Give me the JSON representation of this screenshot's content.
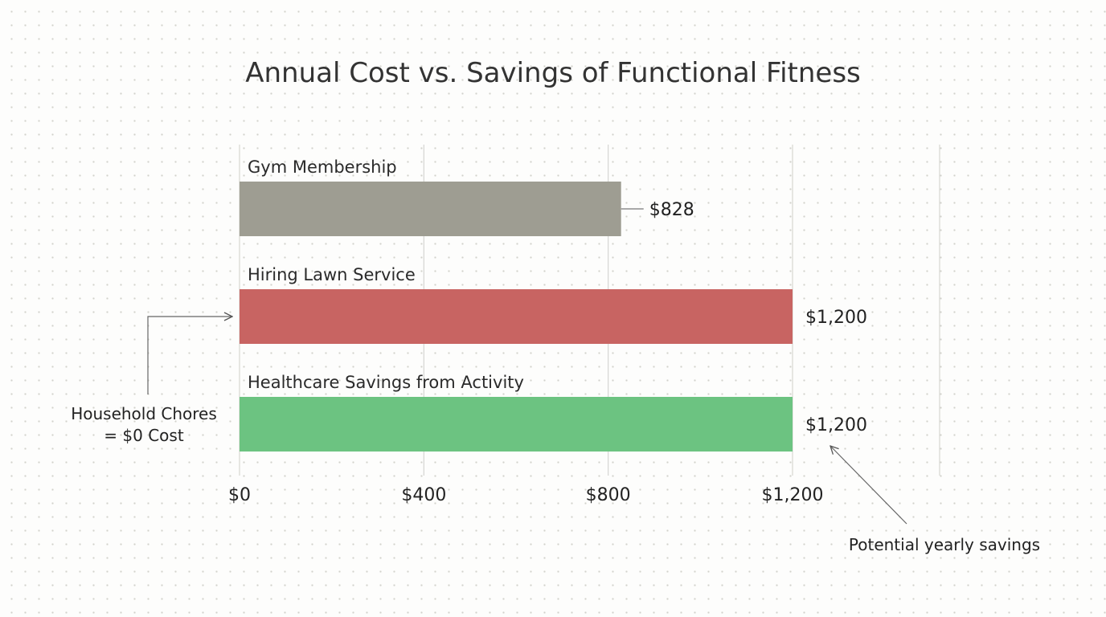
{
  "chart_data": {
    "type": "bar",
    "orientation": "horizontal",
    "title": "Annual Cost vs. Savings of Functional Fitness",
    "xlabel": "",
    "ylabel": "",
    "xlim": [
      0,
      1200
    ],
    "grid": true,
    "categories": [
      "Gym Membership",
      "Hiring Lawn Service",
      "Healthcare Savings from Activity"
    ],
    "values": [
      828,
      1200,
      1200
    ],
    "value_labels": [
      "$828",
      "$1,200",
      "$1,200"
    ],
    "bar_colors": [
      "#9e9d92",
      "#c86462",
      "#6cc381"
    ],
    "x_ticks": [
      0,
      400,
      800,
      1200
    ],
    "x_tick_labels": [
      "$0",
      "$400",
      "$800",
      "$1,200"
    ],
    "annotations": [
      {
        "text_lines": [
          "Household Chores",
          "= $0 Cost"
        ],
        "target": "Hiring Lawn Service"
      },
      {
        "text_lines": [
          "Potential yearly savings"
        ],
        "target": "Healthcare Savings from Activity"
      }
    ]
  }
}
